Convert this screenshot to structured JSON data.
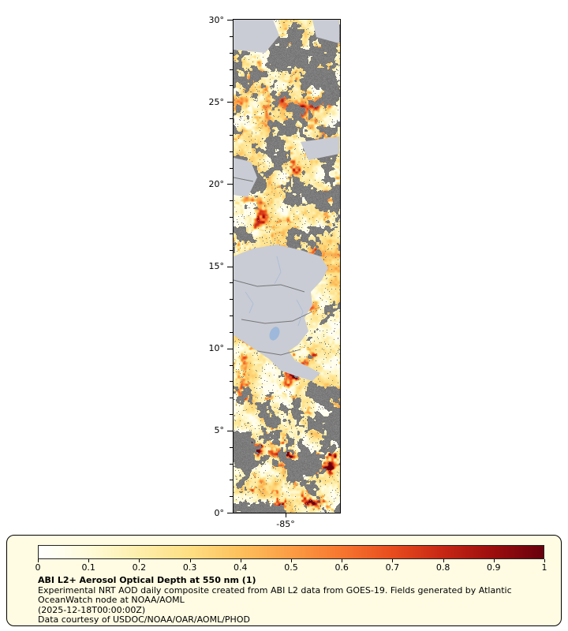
{
  "map": {
    "lat_tick_labels": [
      "30°",
      "25°",
      "20°",
      "15°",
      "10°",
      "5°",
      "0°"
    ],
    "lon_tick_labels": [
      "-85°"
    ],
    "no_data_color": "#7d7d7d",
    "land_color": "#c9ccd4",
    "river_color": "#9db8da",
    "border_color": "#5f5f5f"
  },
  "colorbar": {
    "tick_labels": [
      "0",
      "0.1",
      "0.2",
      "0.3",
      "0.4",
      "0.5",
      "0.6",
      "0.7",
      "0.8",
      "0.9",
      "1"
    ],
    "min": 0,
    "max": 1,
    "stops": [
      "#ffffff",
      "#fffbd9",
      "#feeeab",
      "#fede83",
      "#fdc05c",
      "#fc9c44",
      "#f7762f",
      "#e84c1e",
      "#c72714",
      "#9c0d0d",
      "#67000d"
    ],
    "box_background": "#fffce3"
  },
  "caption": {
    "title": "ABI L2+ Aerosol Optical Depth at 550 nm (1)",
    "line1": "Experimental NRT AOD daily composite created from ABI L2 data from GOES-19. Fields generated by Atlantic",
    "line2": "OceanWatch node at NOAA/AOML",
    "line3": "(2025-12-18T00:00:00Z)",
    "line4": "Data courtesy of USDOC/NOAA/OAR/AOML/PHOD"
  },
  "chart_data": {
    "type": "heatmap",
    "title": "ABI L2+ Aerosol Optical Depth at 550 nm (1)",
    "value_range": [
      0,
      1
    ],
    "colorbar_ticks": [
      0,
      0.1,
      0.2,
      0.3,
      0.4,
      0.5,
      0.6,
      0.7,
      0.8,
      0.9,
      1
    ],
    "lat_ticks_deg": [
      0,
      5,
      10,
      15,
      20,
      25,
      30
    ],
    "lon_ticks_deg": [
      -85
    ]
  }
}
